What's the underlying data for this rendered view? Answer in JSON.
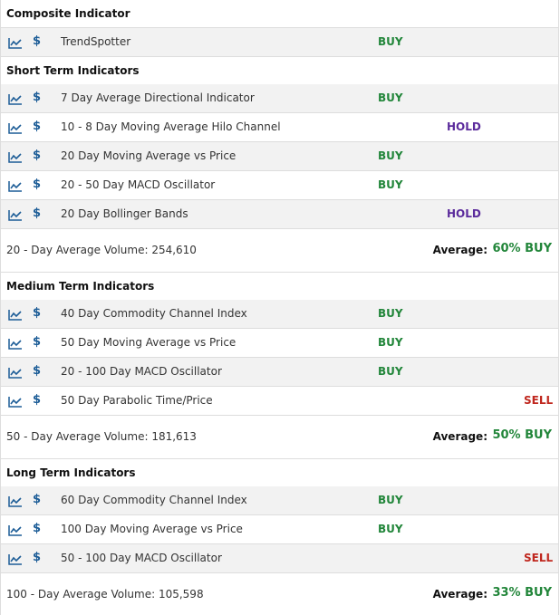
{
  "colors": {
    "buy": "#22863a",
    "hold": "#5b2b9c",
    "sell": "#c0281f",
    "icon": "#1d5d97"
  },
  "icons": {
    "chart": "line-chart-icon",
    "dollar": "dollar-icon"
  },
  "composite": {
    "title": "Composite Indicator",
    "rows": [
      {
        "name": "TrendSpotter",
        "signal": "BUY"
      }
    ]
  },
  "short_term": {
    "title": "Short Term Indicators",
    "rows": [
      {
        "name": "7 Day Average Directional Indicator",
        "signal": "BUY"
      },
      {
        "name": "10 - 8 Day Moving Average Hilo Channel",
        "signal": "HOLD"
      },
      {
        "name": "20 Day Moving Average vs Price",
        "signal": "BUY"
      },
      {
        "name": "20 - 50 Day MACD Oscillator",
        "signal": "BUY"
      },
      {
        "name": "20 Day Bollinger Bands",
        "signal": "HOLD"
      }
    ],
    "volume": "20 - Day Average Volume: 254,610",
    "average_label": "Average:",
    "average_value": "60% BUY"
  },
  "medium_term": {
    "title": "Medium Term Indicators",
    "rows": [
      {
        "name": "40 Day Commodity Channel Index",
        "signal": "BUY"
      },
      {
        "name": "50 Day Moving Average vs Price",
        "signal": "BUY"
      },
      {
        "name": "20 - 100 Day MACD Oscillator",
        "signal": "BUY"
      },
      {
        "name": "50 Day Parabolic Time/Price",
        "signal": "SELL"
      }
    ],
    "volume": "50 - Day Average Volume: 181,613",
    "average_label": "Average:",
    "average_value": "50% BUY"
  },
  "long_term": {
    "title": "Long Term Indicators",
    "rows": [
      {
        "name": "60 Day Commodity Channel Index",
        "signal": "BUY"
      },
      {
        "name": "100 Day Moving Average vs Price",
        "signal": "BUY"
      },
      {
        "name": "50 - 100 Day MACD Oscillator",
        "signal": "SELL"
      }
    ],
    "volume": "100 - Day Average Volume: 105,598",
    "average_label": "Average:",
    "average_value": "33% BUY"
  }
}
